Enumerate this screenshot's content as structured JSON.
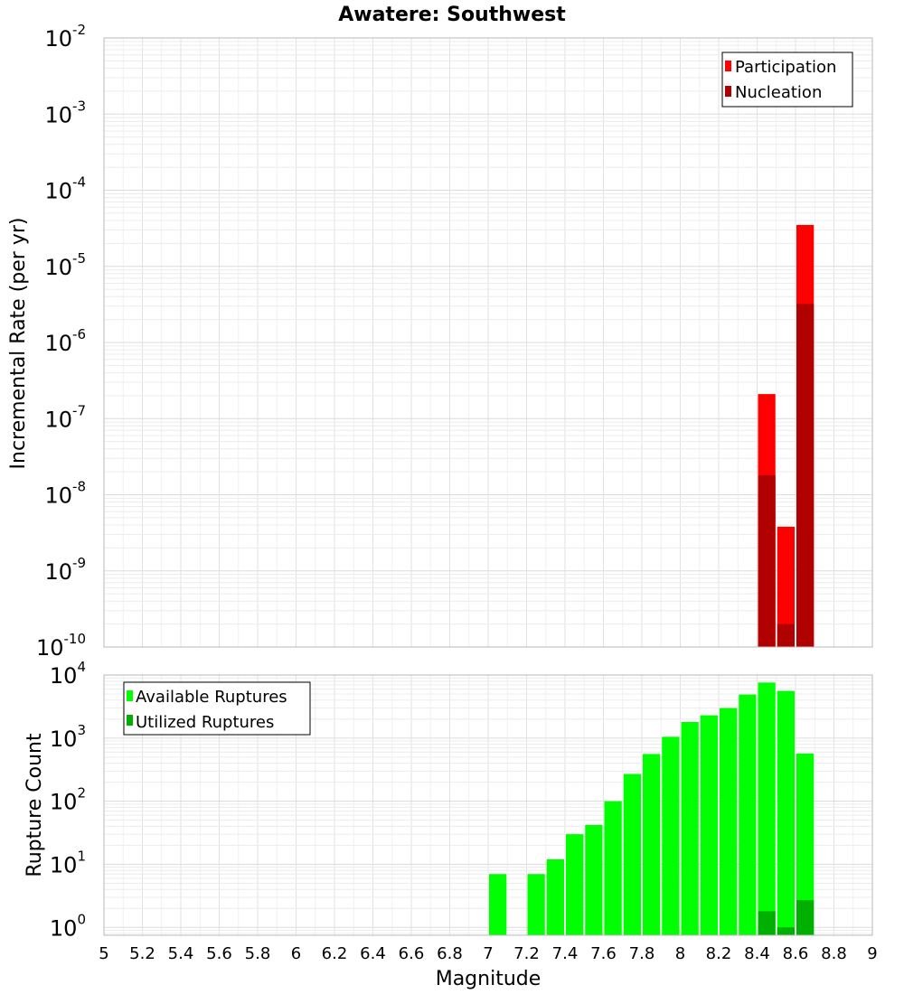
{
  "chart_data": [
    {
      "type": "bar",
      "title": "Awatere: Southwest",
      "ylabel": "Incremental Rate (per yr)",
      "xlabel": "",
      "yscale": "log",
      "ylim": [
        1e-10,
        0.01
      ],
      "xlim": [
        5,
        9
      ],
      "y_exponents": [
        -2,
        -3,
        -4,
        -5,
        -6,
        -7,
        -8,
        -9,
        -10
      ],
      "legend_position": "top-right",
      "bar_width": 0.1,
      "grid": true,
      "series": [
        {
          "name": "Participation",
          "color": "#ff0000",
          "points": [
            {
              "x": 8.45,
              "y": 2.1e-07
            },
            {
              "x": 8.55,
              "y": 3.8e-09
            },
            {
              "x": 8.65,
              "y": 3.5e-05
            }
          ]
        },
        {
          "name": "Nucleation",
          "color": "#b00000",
          "points": [
            {
              "x": 8.45,
              "y": 1.8e-08
            },
            {
              "x": 8.55,
              "y": 2e-10
            },
            {
              "x": 8.65,
              "y": 3.2e-06
            }
          ]
        }
      ]
    },
    {
      "type": "bar",
      "title": "",
      "ylabel": "Rupture Count",
      "xlabel": "Magnitude",
      "yscale": "log",
      "ylim": [
        0.75,
        10000
      ],
      "xlim": [
        5,
        9
      ],
      "y_exponents": [
        4,
        3,
        2,
        1,
        0
      ],
      "legend_position": "top-left",
      "bar_width": 0.1,
      "grid": true,
      "x_ticks": [
        "5",
        "5.2",
        "5.4",
        "5.6",
        "5.8",
        "6",
        "6.2",
        "6.4",
        "6.6",
        "6.8",
        "7",
        "7.2",
        "7.4",
        "7.6",
        "7.8",
        "8",
        "8.2",
        "8.4",
        "8.6",
        "8.8",
        "9"
      ],
      "series": [
        {
          "name": "Available Ruptures",
          "color": "#00ff00",
          "points": [
            {
              "x": 7.05,
              "y": 7
            },
            {
              "x": 7.25,
              "y": 7
            },
            {
              "x": 7.35,
              "y": 12
            },
            {
              "x": 7.45,
              "y": 30
            },
            {
              "x": 7.55,
              "y": 42
            },
            {
              "x": 7.65,
              "y": 100
            },
            {
              "x": 7.75,
              "y": 270
            },
            {
              "x": 7.85,
              "y": 560
            },
            {
              "x": 7.95,
              "y": 1050
            },
            {
              "x": 8.05,
              "y": 1800
            },
            {
              "x": 8.15,
              "y": 2300
            },
            {
              "x": 8.25,
              "y": 3000
            },
            {
              "x": 8.35,
              "y": 4900
            },
            {
              "x": 8.45,
              "y": 7600
            },
            {
              "x": 8.55,
              "y": 5600
            },
            {
              "x": 8.65,
              "y": 570
            }
          ]
        },
        {
          "name": "Utilized Ruptures",
          "color": "#00b000",
          "points": [
            {
              "x": 8.45,
              "y": 1.8
            },
            {
              "x": 8.55,
              "y": 1.0
            },
            {
              "x": 8.65,
              "y": 2.7
            }
          ]
        }
      ]
    }
  ]
}
